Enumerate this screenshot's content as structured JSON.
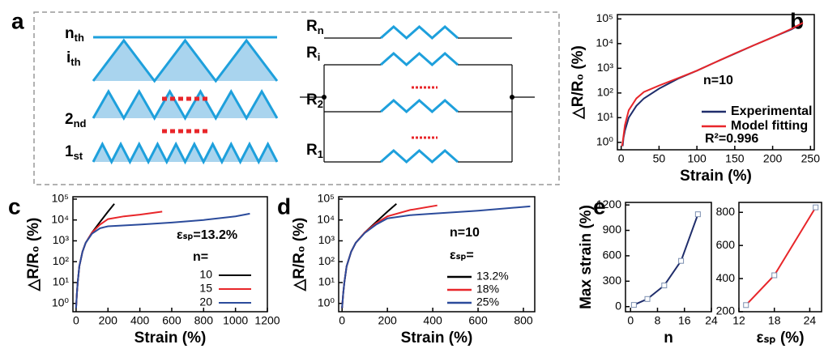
{
  "panel_labels": [
    "a",
    "b",
    "c",
    "d",
    "e"
  ],
  "diagram": {
    "left_labels": [
      {
        "main": "n",
        "sub": "th"
      },
      {
        "main": "i",
        "sub": "th"
      },
      {
        "main": "2",
        "sub": "nd"
      },
      {
        "main": "1",
        "sub": "st"
      }
    ],
    "right_labels": [
      {
        "main": "R",
        "sub": "n"
      },
      {
        "main": "R",
        "sub": "i"
      },
      {
        "main": "R",
        "sub": "2"
      },
      {
        "main": "R",
        "sub": "1"
      }
    ]
  },
  "chart_data": [
    {
      "type": "line",
      "xlabel": "Strain (%)",
      "ylabel": "△R/R₀ (%)",
      "log_y": true,
      "xlim": [
        -5,
        255
      ],
      "xticks": [
        0,
        50,
        100,
        150,
        200,
        250
      ],
      "ylim": [
        0.5,
        150000
      ],
      "yticks": [
        {
          "value": 1,
          "label": "10⁰"
        },
        {
          "value": 10,
          "label": "10¹"
        },
        {
          "value": 100,
          "label": "10²"
        },
        {
          "value": 1000,
          "label": "10³"
        },
        {
          "value": 10000,
          "label": "10⁴"
        },
        {
          "value": 100000,
          "label": "10⁵"
        }
      ],
      "annotations": [
        "n=10",
        "R²=0.996"
      ],
      "series": [
        {
          "name": "Experimental",
          "color": "#1f2d6b",
          "x": [
            2,
            3,
            5,
            10,
            20,
            30,
            50,
            75,
            100,
            125,
            150,
            175,
            200,
            225,
            238
          ],
          "values": [
            0.7,
            1.5,
            3,
            10,
            30,
            60,
            150,
            380,
            800,
            1800,
            3900,
            8500,
            18000,
            38000,
            65000
          ]
        },
        {
          "name": "Model fitting",
          "color": "#e8262a",
          "x": [
            1,
            2,
            5,
            10,
            20,
            30,
            50,
            75,
            100,
            125,
            150,
            175,
            200,
            225,
            240
          ],
          "values": [
            0.7,
            1,
            5,
            20,
            60,
            110,
            200,
            400,
            800,
            1800,
            4000,
            8500,
            18000,
            40000,
            70000
          ]
        }
      ]
    },
    {
      "type": "line",
      "xlabel": "Strain (%)",
      "ylabel": "△R/R₀ (%)",
      "log_y": true,
      "xlim": [
        -20,
        1200
      ],
      "xticks": [
        0,
        200,
        400,
        600,
        800,
        1000,
        1200
      ],
      "ylim": [
        0.4,
        130000
      ],
      "yticks": [
        {
          "value": 1,
          "label": "10⁰"
        },
        {
          "value": 10,
          "label": "10¹"
        },
        {
          "value": 100,
          "label": "10²"
        },
        {
          "value": 1000,
          "label": "10³"
        },
        {
          "value": 10000,
          "label": "10⁴"
        },
        {
          "value": 100000,
          "label": "10⁵"
        }
      ],
      "annotations": [
        "εₛₚ=13.2%"
      ],
      "legend_title": "n=",
      "series": [
        {
          "name": "10",
          "color": "#000000",
          "x": [
            0,
            5,
            10,
            20,
            40,
            60,
            100,
            150,
            200,
            240
          ],
          "values": [
            0.6,
            3,
            10,
            60,
            300,
            800,
            2500,
            8000,
            25000,
            60000
          ]
        },
        {
          "name": "15",
          "color": "#e8262a",
          "x": [
            0,
            5,
            10,
            20,
            40,
            60,
            100,
            150,
            200,
            300,
            400,
            540
          ],
          "values": [
            0.6,
            3,
            10,
            60,
            300,
            800,
            2500,
            6000,
            11000,
            15000,
            18000,
            25000
          ]
        },
        {
          "name": "20",
          "color": "#2b4b9b",
          "x": [
            0,
            5,
            10,
            20,
            40,
            60,
            100,
            150,
            200,
            400,
            600,
            800,
            1000,
            1090
          ],
          "values": [
            0.6,
            3,
            10,
            60,
            300,
            800,
            2200,
            4000,
            5000,
            6000,
            7500,
            10000,
            15000,
            20000
          ]
        }
      ]
    },
    {
      "type": "line",
      "xlabel": "Strain (%)",
      "ylabel": "△R/R₀ (%)",
      "log_y": true,
      "xlim": [
        -15,
        850
      ],
      "xticks": [
        0,
        200,
        400,
        600,
        800
      ],
      "ylim": [
        0.4,
        130000
      ],
      "yticks": [
        {
          "value": 1,
          "label": "10⁰"
        },
        {
          "value": 10,
          "label": "10¹"
        },
        {
          "value": 100,
          "label": "10²"
        },
        {
          "value": 1000,
          "label": "10³"
        },
        {
          "value": 10000,
          "label": "10⁴"
        },
        {
          "value": 100000,
          "label": "10⁵"
        }
      ],
      "annotations": [
        "n=10"
      ],
      "legend_title": "εₛₚ=",
      "series": [
        {
          "name": "13.2%",
          "color": "#000000",
          "x": [
            0,
            5,
            10,
            20,
            40,
            60,
            100,
            150,
            200,
            240
          ],
          "values": [
            0.6,
            3,
            10,
            60,
            300,
            800,
            2500,
            8000,
            25000,
            60000
          ]
        },
        {
          "name": "18%",
          "color": "#e8262a",
          "x": [
            0,
            5,
            10,
            20,
            40,
            60,
            100,
            150,
            200,
            300,
            420
          ],
          "values": [
            0.6,
            3,
            10,
            60,
            300,
            800,
            2500,
            7000,
            15000,
            30000,
            50000
          ]
        },
        {
          "name": "25%",
          "color": "#2b4b9b",
          "x": [
            0,
            5,
            10,
            20,
            40,
            60,
            100,
            150,
            200,
            300,
            400,
            600,
            830
          ],
          "values": [
            0.6,
            3,
            10,
            60,
            300,
            800,
            2400,
            6000,
            12000,
            17000,
            20000,
            28000,
            45000
          ]
        }
      ]
    },
    {
      "type": "line",
      "xlabel": "n",
      "ylabel": "Max strain (%)",
      "marker": "square",
      "xlim": [
        -1.5,
        24
      ],
      "xticks": [
        0,
        8,
        16,
        24
      ],
      "ylim": [
        -60,
        1230
      ],
      "yticks": [
        0,
        300,
        600,
        900,
        1200
      ],
      "series": [
        {
          "color": "#1f2d6b",
          "x": [
            1,
            5,
            10,
            15,
            20
          ],
          "values": [
            20,
            90,
            250,
            540,
            1090
          ]
        }
      ]
    },
    {
      "type": "line",
      "xlabel": "εₛₚ (%)",
      "marker": "square",
      "xlim": [
        12,
        26
      ],
      "xticks": [
        12,
        18,
        24
      ],
      "ylim": [
        200,
        860
      ],
      "yticks": [
        200,
        400,
        600,
        800
      ],
      "series": [
        {
          "color": "#e8262a",
          "x": [
            13.2,
            18,
            25
          ],
          "values": [
            240,
            420,
            830
          ]
        }
      ]
    }
  ]
}
